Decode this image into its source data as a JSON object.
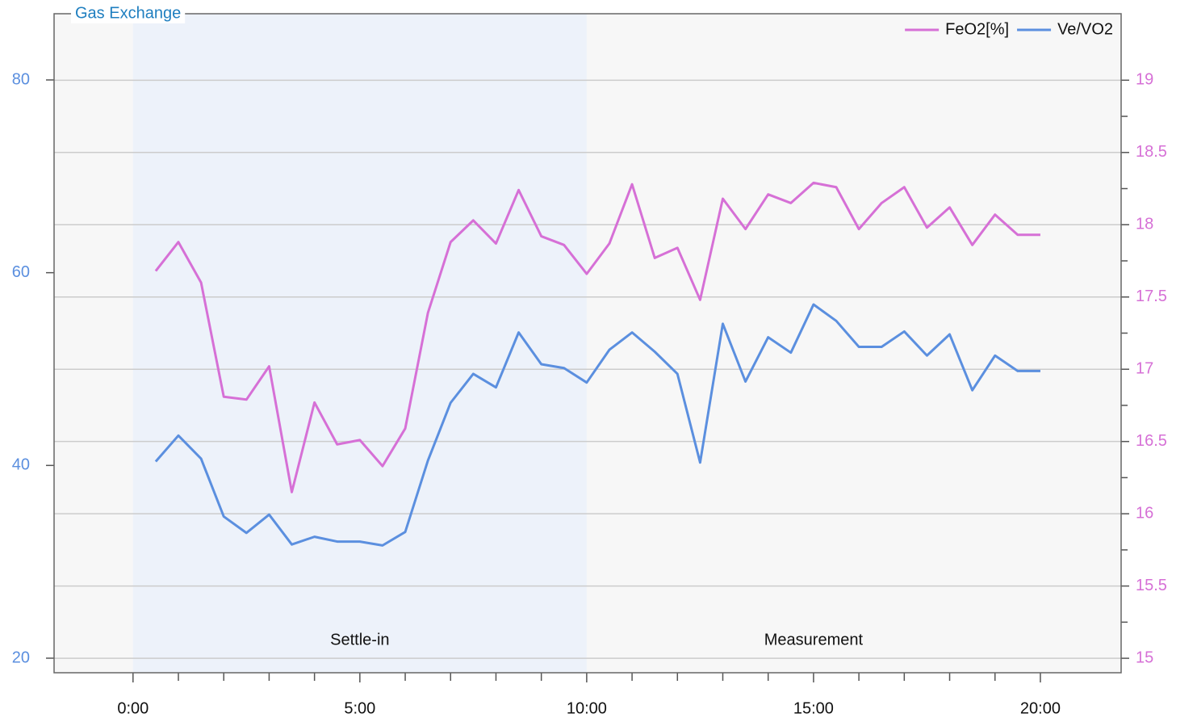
{
  "chart_data": {
    "type": "line",
    "title": "Gas Exchange",
    "x": [
      0.5,
      1,
      1.5,
      2,
      2.5,
      3,
      3.5,
      4,
      4.5,
      5,
      5.5,
      6,
      6.5,
      7,
      7.5,
      8,
      8.5,
      9,
      9.5,
      10,
      10.5,
      11,
      11.5,
      12,
      12.5,
      13,
      13.5,
      14,
      14.5,
      15,
      15.5,
      16,
      16.5,
      17,
      17.5,
      18,
      18.5,
      19,
      19.5,
      20
    ],
    "series": [
      {
        "name": "FeO2[%]",
        "color": "#d670d6",
        "axis": "y2",
        "values": [
          17.68,
          17.88,
          17.6,
          16.81,
          16.79,
          17.02,
          16.15,
          16.77,
          16.48,
          16.51,
          16.33,
          16.59,
          17.39,
          17.88,
          18.03,
          17.87,
          18.24,
          17.92,
          17.86,
          17.66,
          17.87,
          18.28,
          17.77,
          17.84,
          17.48,
          18.18,
          17.97,
          18.21,
          18.15,
          18.29,
          18.26,
          17.97,
          18.15,
          18.26,
          17.98,
          18.12,
          17.86,
          18.07,
          17.93,
          17.93
        ]
      },
      {
        "name": "Ve/VO2",
        "color": "#5b8fdf",
        "values": [
          40.4,
          43.1,
          40.7,
          34.7,
          33.0,
          34.9,
          31.8,
          32.6,
          32.1,
          32.1,
          31.7,
          33.1,
          40.5,
          46.5,
          49.5,
          48.1,
          53.8,
          50.5,
          50.1,
          48.6,
          52.0,
          53.8,
          51.8,
          49.5,
          40.3,
          54.7,
          48.7,
          53.3,
          51.7,
          56.7,
          55.0,
          52.3,
          52.3,
          53.9,
          51.4,
          53.6,
          47.8,
          51.4,
          49.8,
          49.8
        ]
      }
    ],
    "regions": [
      {
        "label": "Settle-in",
        "start": 0,
        "end": 10,
        "color": "#edf2fa"
      },
      {
        "label": "Measurement",
        "start": 10,
        "end": 20,
        "color": "#f7f7f7"
      }
    ],
    "xlim": [
      -1.74,
      21.78
    ],
    "xticks": [
      {
        "value": 0,
        "label": "0:00"
      },
      {
        "value": 5,
        "label": "5:00"
      },
      {
        "value": 10,
        "label": "10:00"
      },
      {
        "value": 15,
        "label": "15:00"
      },
      {
        "value": 20,
        "label": "20:00"
      }
    ],
    "xminorticks": [
      1,
      2,
      3,
      4,
      6,
      7,
      8,
      9,
      11,
      12,
      13,
      14,
      16,
      17,
      18,
      19
    ],
    "ylim": [
      18.49,
      86.87
    ],
    "yticks": [
      20,
      40,
      60,
      80
    ],
    "y2lim": [
      14.9,
      19.46
    ],
    "y2ticks": [
      15,
      15.5,
      16,
      16.5,
      17,
      17.5,
      18,
      18.5,
      19
    ],
    "y2minorticks": [
      15.25,
      15.75,
      16.25,
      16.75,
      17.25,
      17.75,
      18.25,
      18.75
    ],
    "grid": "y2",
    "legend": "top-right",
    "background": "#f7f7f7"
  }
}
